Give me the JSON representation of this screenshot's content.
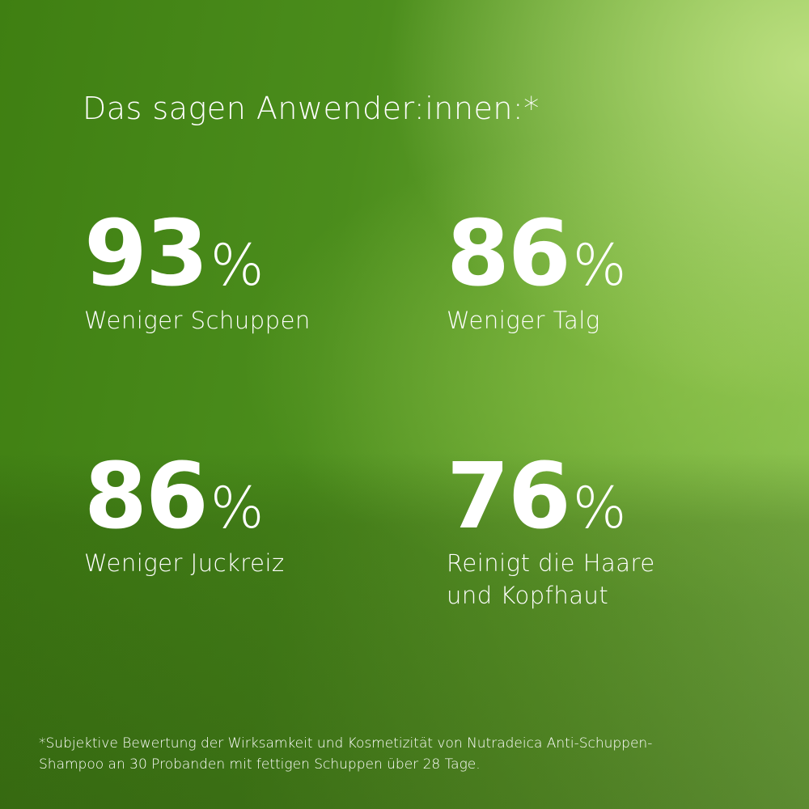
{
  "title": "Das sagen Anwender:innen:*",
  "stats": [
    {
      "value": "93",
      "unit": "%",
      "label_lines": [
        "Weniger Schuppen"
      ]
    },
    {
      "value": "86",
      "unit": "%",
      "label_lines": [
        "Weniger Talg"
      ]
    },
    {
      "value": "86",
      "unit": "%",
      "label_lines": [
        "Weniger Juckreiz"
      ]
    },
    {
      "value": "76",
      "unit": "%",
      "label_lines": [
        "Reinigt die Haare",
        "und Kopfhaut"
      ]
    }
  ],
  "footnote_lines": [
    "*Subjektive Bewertung der Wirksamkeit und Kosmetizität von Nutradeica Anti-Schuppen-",
    "Shampoo an 30 Probanden mit fettigen Schuppen über 28 Tage."
  ],
  "colors": {
    "background_dark": "#3f7f12",
    "background_light": "#b8dc80",
    "text": "#ffffff"
  }
}
